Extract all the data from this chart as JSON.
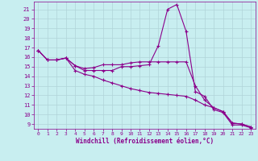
{
  "bg_color": "#c8eef0",
  "grid_color": "#b0d4d8",
  "line_color": "#8b008b",
  "xlabel": "Windchill (Refroidissement éolien,°C)",
  "x_hours": [
    0,
    1,
    2,
    3,
    4,
    5,
    6,
    7,
    8,
    9,
    10,
    11,
    12,
    13,
    14,
    15,
    16,
    17,
    18,
    19,
    20,
    21,
    22,
    23
  ],
  "series1": [
    16.7,
    15.7,
    15.7,
    15.9,
    15.1,
    14.6,
    14.6,
    14.6,
    14.6,
    15.0,
    15.0,
    15.1,
    15.2,
    17.2,
    21.0,
    21.5,
    18.7,
    12.4,
    11.9,
    10.5,
    10.2,
    8.9,
    8.9,
    8.6
  ],
  "series2": [
    16.7,
    15.7,
    15.7,
    15.9,
    15.1,
    14.8,
    14.9,
    15.2,
    15.2,
    15.2,
    15.4,
    15.5,
    15.5,
    15.5,
    15.5,
    15.5,
    15.5,
    13.0,
    11.5,
    10.7,
    10.3,
    9.1,
    9.0,
    8.7
  ],
  "series3": [
    16.7,
    15.7,
    15.7,
    15.9,
    14.6,
    14.2,
    14.0,
    13.6,
    13.3,
    13.0,
    12.7,
    12.5,
    12.3,
    12.2,
    12.1,
    12.0,
    11.9,
    11.5,
    11.0,
    10.7,
    10.3,
    9.1,
    9.0,
    8.7
  ],
  "ylim": [
    8.5,
    21.8
  ],
  "xlim": [
    -0.5,
    23.5
  ],
  "yticks": [
    9,
    10,
    11,
    12,
    13,
    14,
    15,
    16,
    17,
    18,
    19,
    20,
    21
  ],
  "xticks": [
    0,
    1,
    2,
    3,
    4,
    5,
    6,
    7,
    8,
    9,
    10,
    11,
    12,
    13,
    14,
    15,
    16,
    17,
    18,
    19,
    20,
    21,
    22,
    23
  ]
}
